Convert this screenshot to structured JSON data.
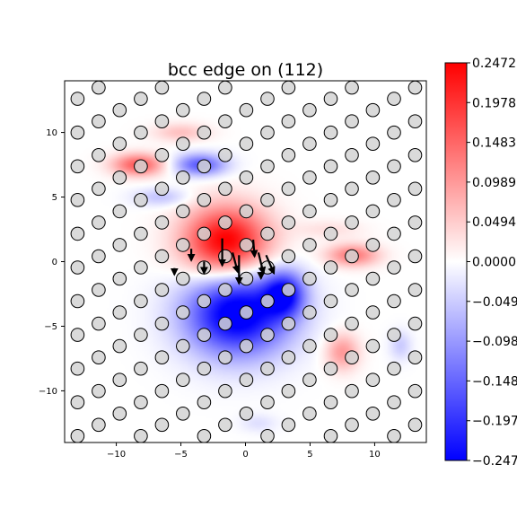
{
  "chart_data": {
    "type": "heatmap",
    "title": "bcc edge on (112)",
    "xlabel": "",
    "ylabel": "",
    "xlim": [
      -14,
      14
    ],
    "ylim": [
      -14,
      14
    ],
    "x_ticks": [
      -10,
      -5,
      0,
      5,
      10
    ],
    "y_ticks": [
      -10,
      -5,
      0,
      5,
      10
    ],
    "x_tick_labels": [
      "−10",
      "−5",
      "0",
      "5",
      "10"
    ],
    "y_tick_labels": [
      "−10",
      "−5",
      "0",
      "5",
      "10"
    ],
    "colormap": "bwr",
    "colors": {
      "low": "#0000ff",
      "mid": "#ffffff",
      "high": "#ff0000"
    },
    "color_range": [
      -0.2472,
      0.2472
    ],
    "colorbar_ticks": [
      0.2472,
      0.1978,
      0.1483,
      0.0989,
      0.0494,
      0.0,
      -0.0494,
      -0.0989,
      -0.1483,
      -0.1978,
      -0.2472
    ],
    "colorbar_tick_labels": [
      "0.2472",
      "0.1978",
      "0.1483",
      "0.0989",
      "0.0494",
      "0.0000",
      "−0.0494",
      "−0.0989",
      "−0.1483",
      "−0.1978",
      "−0.2472"
    ],
    "field_blobs": [
      {
        "x": -1.5,
        "y": 1.5,
        "sx": 2.3,
        "sy": 1.9,
        "v": 0.26
      },
      {
        "x": -0.6,
        "y": -4.0,
        "sx": 2.8,
        "sy": 2.3,
        "v": -0.28
      },
      {
        "x": 3.0,
        "y": -2.5,
        "sx": 1.1,
        "sy": 1.2,
        "v": -0.2
      },
      {
        "x": -8.3,
        "y": 7.5,
        "sx": 1.4,
        "sy": 0.6,
        "v": 0.16
      },
      {
        "x": -3.5,
        "y": 7.5,
        "sx": 1.4,
        "sy": 0.6,
        "v": -0.16
      },
      {
        "x": -5.0,
        "y": 10.0,
        "sx": 1.5,
        "sy": 0.5,
        "v": 0.06
      },
      {
        "x": -6.5,
        "y": 5.0,
        "sx": 1.5,
        "sy": 0.5,
        "v": -0.06
      },
      {
        "x": 8.3,
        "y": 0.5,
        "sx": 1.4,
        "sy": 0.6,
        "v": 0.13
      },
      {
        "x": 7.5,
        "y": -7.0,
        "sx": 0.9,
        "sy": 1.0,
        "v": 0.1
      },
      {
        "x": 12.0,
        "y": -6.5,
        "sx": 0.6,
        "sy": 0.8,
        "v": -0.05
      },
      {
        "x": 6.5,
        "y": 2.5,
        "sx": 1.8,
        "sy": 0.5,
        "v": 0.03
      },
      {
        "x": 1.0,
        "y": -12.5,
        "sx": 1.0,
        "sy": 0.5,
        "v": -0.03
      }
    ],
    "lattice": {
      "x0": -13.0,
      "y0": -13.5,
      "dx": 4.9,
      "dy": 0.87,
      "row_shift": 1.63,
      "row_count": 32
    },
    "displacement_arrows": [
      {
        "x": -1.8,
        "y": 1.8,
        "dx": 0.0,
        "dy": -2.1
      },
      {
        "x": -0.5,
        "y": 0.5,
        "dx": 0.0,
        "dy": -2.2
      },
      {
        "x": -1.0,
        "y": 0.7,
        "dx": 0.4,
        "dy": -1.5
      },
      {
        "x": 0.6,
        "y": 1.7,
        "dx": 0.1,
        "dy": -1.3
      },
      {
        "x": 1.0,
        "y": 0.7,
        "dx": 0.4,
        "dy": -1.6
      },
      {
        "x": 1.6,
        "y": 0.5,
        "dx": 0.6,
        "dy": -1.4
      },
      {
        "x": -4.2,
        "y": 1.0,
        "dx": 0.0,
        "dy": -0.9
      },
      {
        "x": -3.2,
        "y": 0.0,
        "dx": 0.0,
        "dy": -0.9
      },
      {
        "x": 1.2,
        "y": -0.8,
        "dx": 0.0,
        "dy": -0.5
      },
      {
        "x": -5.5,
        "y": -0.5,
        "dx": 0.0,
        "dy": -0.5
      }
    ]
  }
}
